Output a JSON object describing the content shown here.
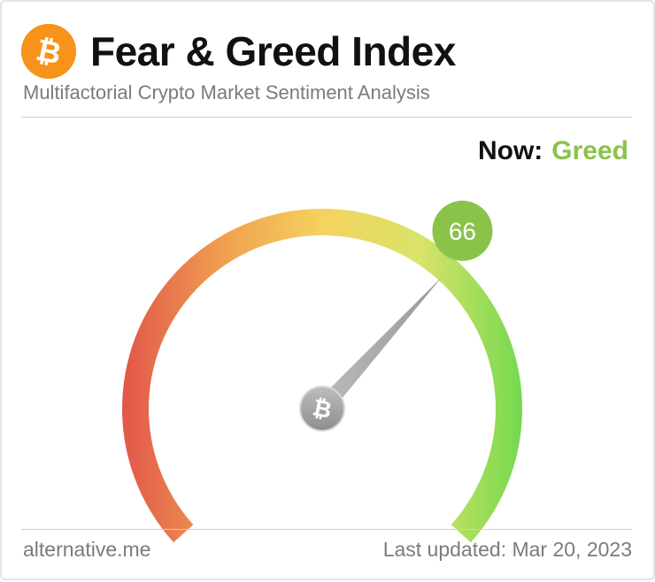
{
  "header": {
    "title": "Fear & Greed Index",
    "subtitle": "Multifactorial Crypto Market Sentiment Analysis",
    "logo_icon": "bitcoin-icon"
  },
  "status": {
    "now_label": "Now:",
    "classification": "Greed",
    "classification_color": "#8bc34a"
  },
  "gauge": {
    "value": 66,
    "min": 0,
    "max": 100,
    "badge_color": "#8bc34a",
    "needle_color": "#a9a9a9",
    "hub_icon": "bitcoin-icon",
    "gradient_colors": [
      "#e2584b",
      "#f0a050",
      "#f4d35e",
      "#d9e36a",
      "#77d94f"
    ]
  },
  "footer": {
    "source": "alternative.me",
    "updated": "Last updated: Mar 20, 2023"
  },
  "colors": {
    "bitcoin_orange": "#f7931a"
  }
}
